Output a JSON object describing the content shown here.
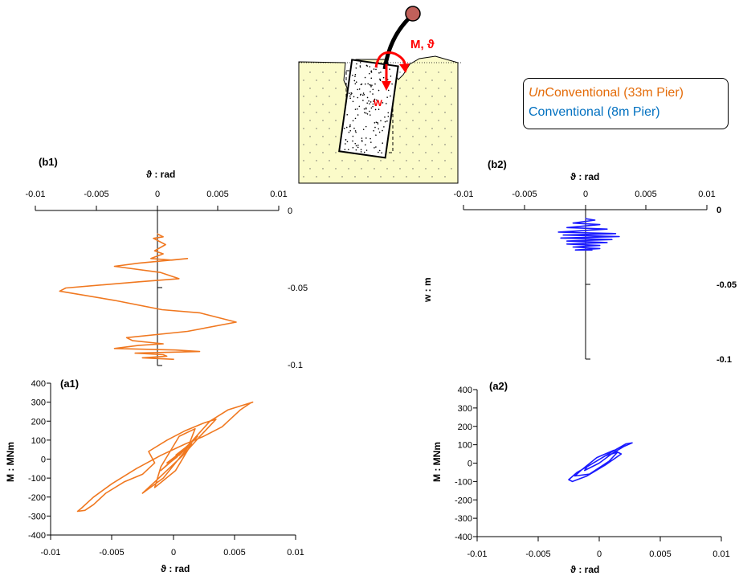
{
  "legend": {
    "unconventional_prefix": "Un",
    "unconventional_rest": "Conventional (33m Pier)",
    "conventional": "Conventional (8m Pier)"
  },
  "sketch": {
    "moment_label": "M, ϑ",
    "settlement_label": "w"
  },
  "colors": {
    "unconventional": "#f07820",
    "conventional": "#1a1aff",
    "soil": "#fbfbc9",
    "arrows": "#ff0000",
    "mass": "#c0605a"
  },
  "chart_data": [
    {
      "id": "b1",
      "panel_label": "(b1)",
      "type": "line",
      "xlabel": "ϑ : rad",
      "ylabel": "",
      "xlim": [
        -0.01,
        0.01
      ],
      "ylim": [
        0,
        -0.1
      ],
      "x_ticks": [
        "-0.01",
        "-0.005",
        "0",
        "0.005",
        "0.01"
      ],
      "y_ticks": [
        "0",
        "-0.05",
        "-0.1"
      ],
      "series": [
        {
          "x": [
            0.0,
            0.0005,
            -0.0003,
            0.0007,
            -0.0002,
            0.0005,
            -0.0005,
            0.0012,
            0.0025,
            -0.0015,
            -0.0035,
            0.0003,
            0.0018,
            -0.0015,
            -0.0075,
            -0.008,
            -0.0035,
            0.0004,
            0.0035,
            0.0065,
            0.0025,
            -0.0025,
            -0.002,
            0.0005,
            -0.0015,
            -0.0035,
            0.0015,
            0.0035,
            -0.0018,
            0.0005,
            0.0008,
            -0.0012,
            0.0014
          ],
          "y": [
            -0.015,
            -0.017,
            -0.018,
            -0.022,
            -0.026,
            -0.028,
            -0.031,
            -0.032,
            -0.031,
            -0.034,
            -0.036,
            -0.04,
            -0.044,
            -0.046,
            -0.05,
            -0.052,
            -0.058,
            -0.064,
            -0.066,
            -0.072,
            -0.078,
            -0.082,
            -0.084,
            -0.086,
            -0.087,
            -0.089,
            -0.09,
            -0.091,
            -0.092,
            -0.093,
            -0.094,
            -0.095,
            -0.096
          ]
        }
      ]
    },
    {
      "id": "b2",
      "panel_label": "(b2)",
      "type": "line",
      "xlabel": "ϑ : rad",
      "ylabel": "w : m",
      "xlim": [
        -0.01,
        0.01
      ],
      "ylim": [
        0,
        -0.1
      ],
      "x_ticks": [
        "-0.01",
        "-0.005",
        "0",
        "0.005",
        "0.01"
      ],
      "y_ticks": [
        "0",
        "-0.05",
        "-0.1"
      ],
      "series": [
        {
          "x": [
            0.0,
            0.0008,
            -0.001,
            0.0012,
            -0.0015,
            0.0018,
            -0.0022,
            0.0025,
            -0.0018,
            0.0028,
            -0.002,
            0.0022,
            -0.0015,
            0.0018,
            -0.0015,
            0.0012,
            -0.001,
            0.0012,
            -0.0008,
            0.0006
          ],
          "y": [
            -0.006,
            -0.007,
            -0.009,
            -0.01,
            -0.012,
            -0.013,
            -0.015,
            -0.016,
            -0.017,
            -0.018,
            -0.019,
            -0.02,
            -0.021,
            -0.022,
            -0.023,
            -0.024,
            -0.025,
            -0.026,
            -0.027,
            -0.027
          ]
        }
      ]
    },
    {
      "id": "a1",
      "panel_label": "(a1)",
      "type": "line",
      "xlabel": "ϑ : rad",
      "ylabel": "M : MNm",
      "xlim": [
        -0.01,
        0.01
      ],
      "ylim": [
        -400,
        400
      ],
      "x_ticks": [
        "-0.01",
        "-0.005",
        "0",
        "0.005",
        "0.01"
      ],
      "y_ticks": [
        "400",
        "300",
        "200",
        "100",
        "0",
        "-100",
        "-200",
        "-300",
        "-400"
      ],
      "series": [
        {
          "x": [
            0.0,
            0.001,
            -0.0005,
            0.0015,
            -0.001,
            0.002,
            0.0005,
            0.003,
            0.0045,
            0.006,
            0.0065,
            0.0063,
            0.0055,
            0.004,
            0.0025,
            0.001,
            -0.001,
            -0.003,
            -0.005,
            -0.0065,
            -0.0075,
            -0.0078,
            -0.0072,
            -0.0065,
            -0.0055,
            -0.004,
            -0.0025,
            -0.0015,
            -0.002,
            -0.0005,
            0.001,
            0.0025,
            0.0035,
            0.0022,
            0.0008,
            -0.0015,
            -0.0025,
            -0.0008,
            0.0012,
            0.0018,
            0.0005,
            -0.001,
            -0.0015,
            0.0002,
            0.0015,
            0.0008,
            -0.0005,
            0.0003,
            0.001,
            0.0002
          ],
          "y": [
            0,
            50,
            -20,
            80,
            -60,
            120,
            20,
            200,
            260,
            290,
            300,
            295,
            260,
            170,
            120,
            80,
            20,
            -50,
            -130,
            -200,
            -260,
            -275,
            -270,
            -240,
            -180,
            -120,
            -80,
            -20,
            40,
            100,
            150,
            190,
            210,
            120,
            20,
            -120,
            -180,
            -100,
            60,
            160,
            120,
            -40,
            -150,
            -60,
            80,
            40,
            -30,
            10,
            60,
            20
          ]
        }
      ]
    },
    {
      "id": "a2",
      "panel_label": "(a2)",
      "type": "line",
      "xlabel": "ϑ : rad",
      "ylabel": "M : MNm",
      "xlim": [
        -0.01,
        0.01
      ],
      "ylim": [
        -400,
        400
      ],
      "x_ticks": [
        "-0.01",
        "-0.005",
        "0",
        "0.005",
        "0.01"
      ],
      "y_ticks": [
        "400",
        "300",
        "200",
        "100",
        "0",
        "-100",
        "-200",
        "-300",
        "-400"
      ],
      "series": [
        {
          "x": [
            0.0,
            0.001,
            0.002,
            0.0027,
            0.0022,
            0.001,
            -0.0005,
            -0.0018,
            -0.0025,
            -0.0022,
            -0.001,
            0.0005,
            0.0018,
            0.0012,
            -0.0002,
            -0.0015,
            -0.002,
            -0.0008,
            0.0008,
            0.0015,
            0.0005,
            -0.001,
            -0.0012,
            0.0
          ],
          "y": [
            0,
            50,
            90,
            110,
            105,
            60,
            0,
            -50,
            -90,
            -100,
            -70,
            -10,
            50,
            70,
            30,
            -40,
            -70,
            -60,
            10,
            60,
            40,
            -20,
            -40,
            0
          ]
        }
      ]
    }
  ]
}
